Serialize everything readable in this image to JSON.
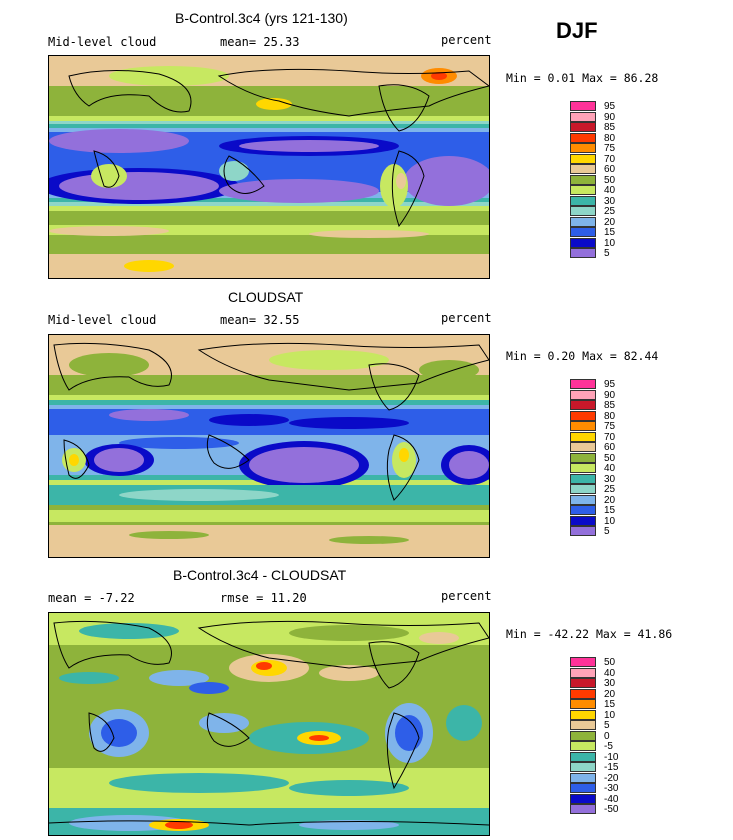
{
  "season": "DJF",
  "panels": [
    {
      "title": "B-Control.3c4 (yrs 121-130)",
      "left_label": "Mid-level cloud",
      "center_label": "mean=  25.33",
      "unit": "percent",
      "minmax": "Min =   0.01 Max =  86.28",
      "levels": [
        "95",
        "90",
        "85",
        "80",
        "75",
        "70",
        "60",
        "50",
        "40",
        "30",
        "25",
        "20",
        "15",
        "10",
        "5"
      ],
      "colors": [
        "#ff3399",
        "#ffa3b8",
        "#c8182a",
        "#ff3a00",
        "#ff8c00",
        "#ffd700",
        "#e9c997",
        "#8eb33b",
        "#c7e861",
        "#3cb5a8",
        "#8ed6c8",
        "#7fb4ea",
        "#2e5ee8",
        "#0a0ac8",
        "#9370db"
      ]
    },
    {
      "title": "CLOUDSAT",
      "left_label": "Mid-level cloud",
      "center_label": "mean=  32.55",
      "unit": "percent",
      "minmax": "Min =   0.20 Max =  82.44",
      "levels": [
        "95",
        "90",
        "85",
        "80",
        "75",
        "70",
        "60",
        "50",
        "40",
        "30",
        "25",
        "20",
        "15",
        "10",
        "5"
      ],
      "colors": [
        "#ff3399",
        "#ffa3b8",
        "#c8182a",
        "#ff3a00",
        "#ff8c00",
        "#ffd700",
        "#e9c997",
        "#8eb33b",
        "#c7e861",
        "#3cb5a8",
        "#8ed6c8",
        "#7fb4ea",
        "#2e5ee8",
        "#0a0ac8",
        "#9370db"
      ]
    },
    {
      "title": "B-Control.3c4 - CLOUDSAT",
      "left_label": "mean =   -7.22",
      "center_label": "rmse =   11.20",
      "unit": "percent",
      "minmax": "Min = -42.22 Max =  41.86",
      "levels": [
        "50",
        "40",
        "30",
        "20",
        "15",
        "10",
        "5",
        "0",
        "-5",
        "-10",
        "-15",
        "-20",
        "-30",
        "-40",
        "-50"
      ],
      "colors": [
        "#ff3399",
        "#ffa3b8",
        "#c8182a",
        "#ff3a00",
        "#ff8c00",
        "#ffd700",
        "#e9c997",
        "#8eb33b",
        "#c7e861",
        "#3cb5a8",
        "#8ed6c8",
        "#7fb4ea",
        "#2e5ee8",
        "#0a0ac8",
        "#9370db"
      ]
    }
  ]
}
